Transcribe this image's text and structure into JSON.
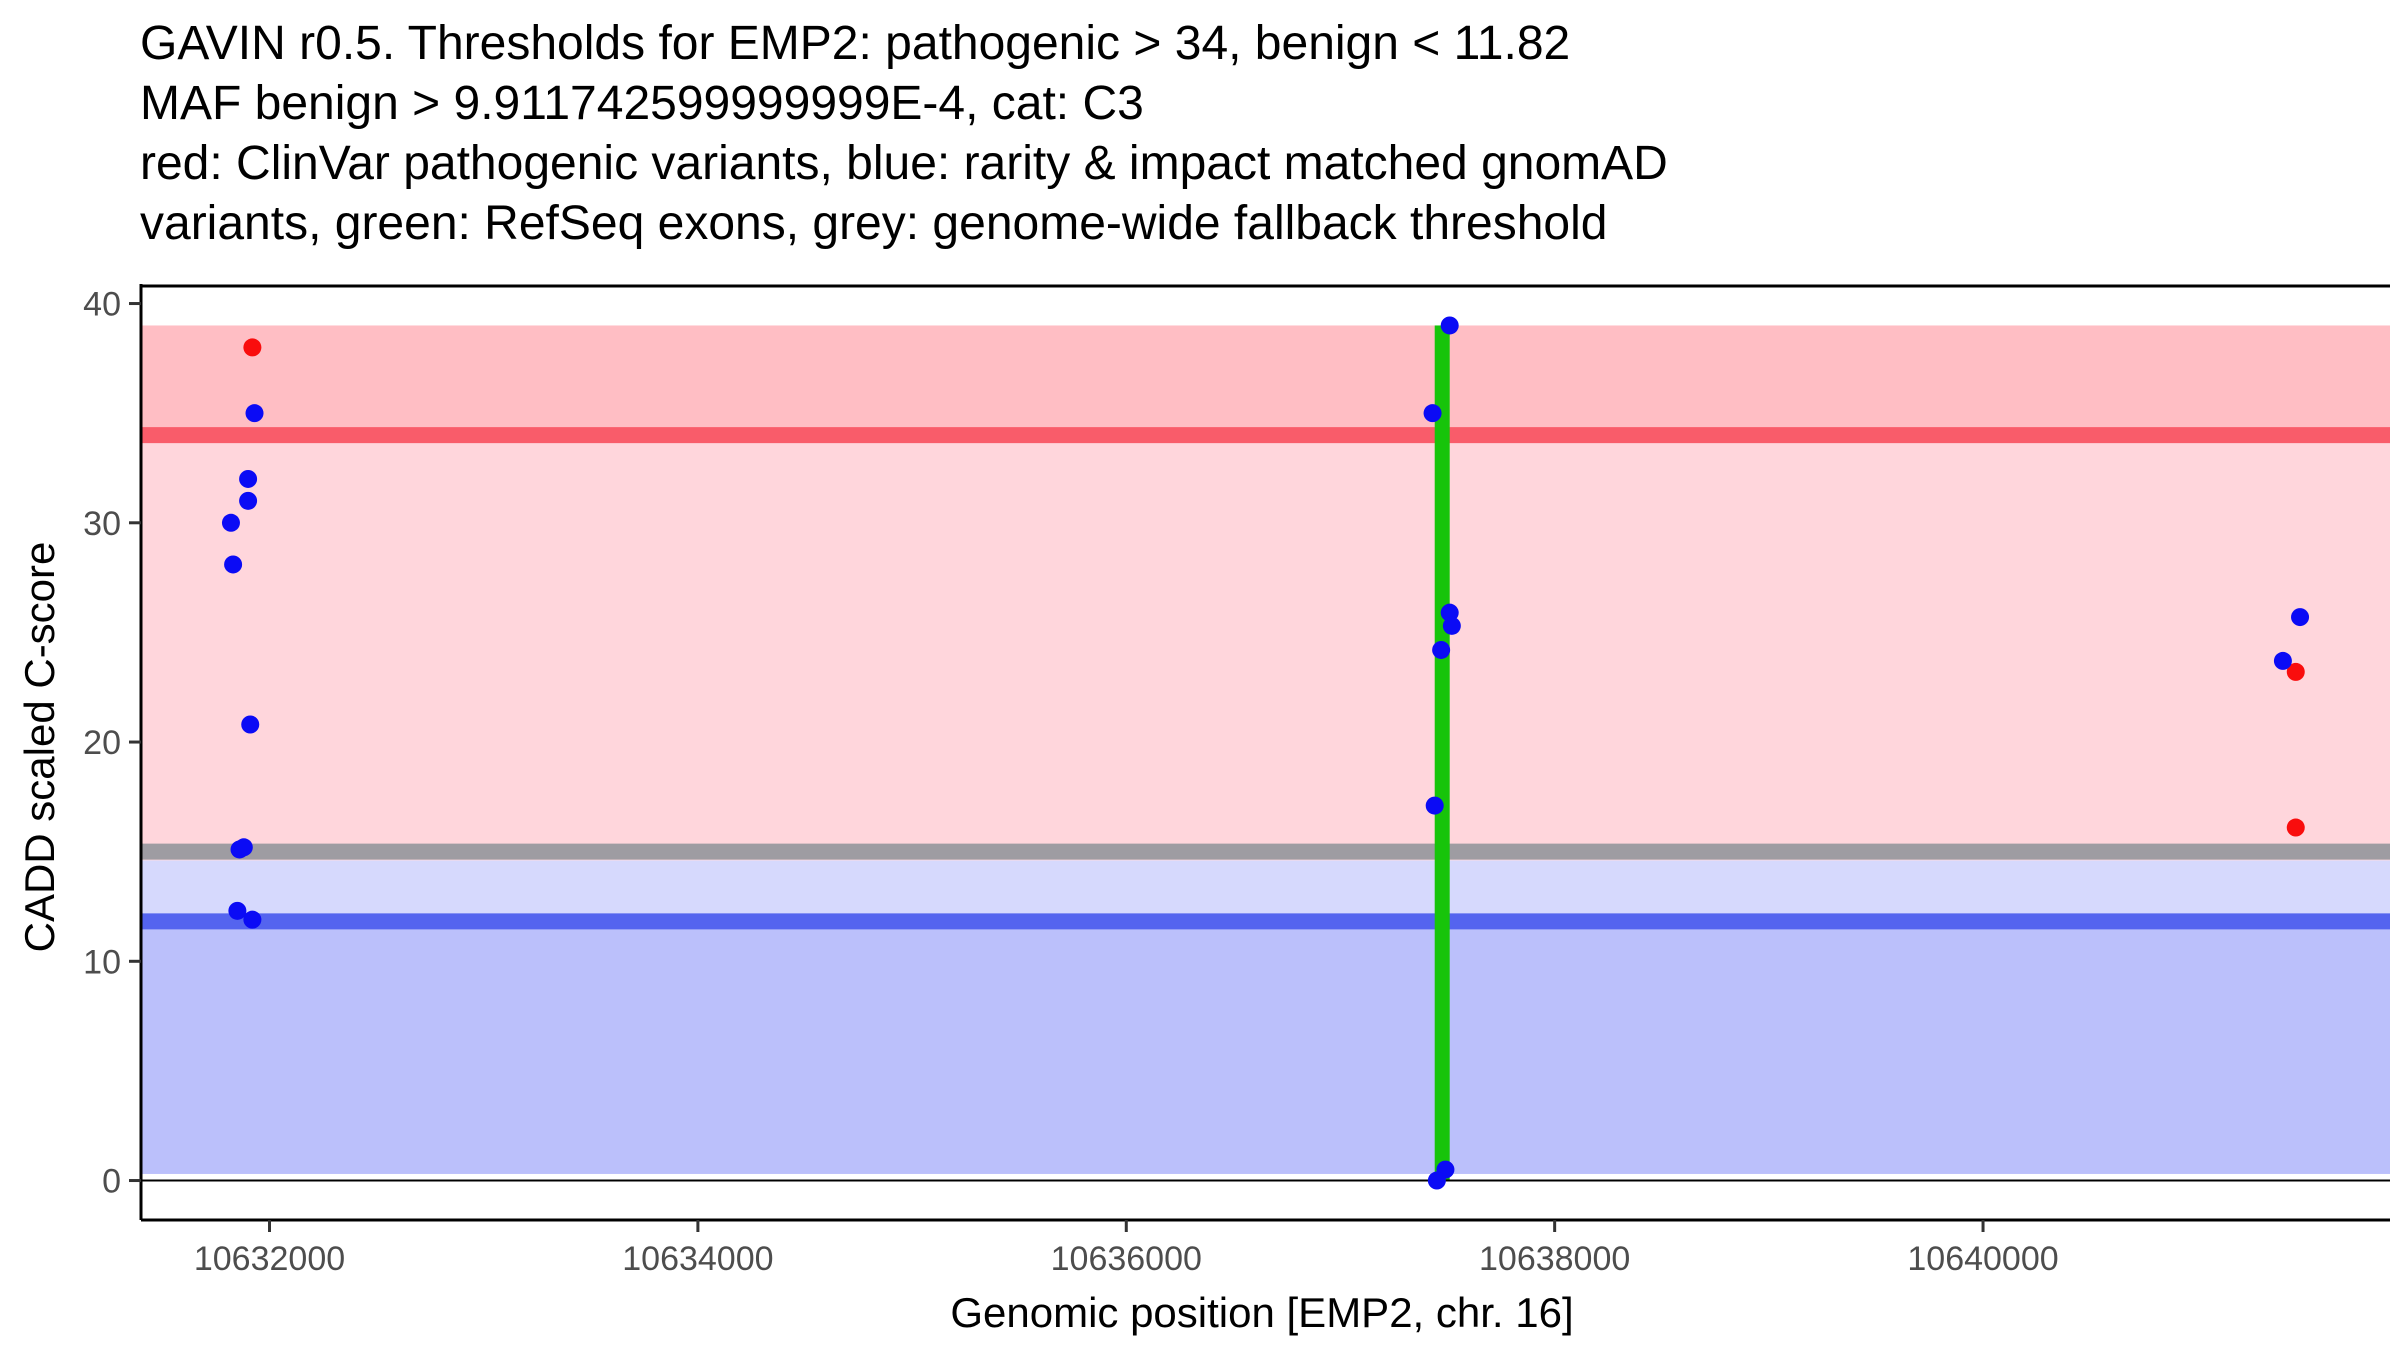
{
  "chart_data": {
    "type": "scatter",
    "title_lines": [
      "GAVIN r0.5. Thresholds for EMP2: pathogenic > 34, benign < 11.82",
      "MAF benign > 9.911742599999999E-4, cat: C3",
      "red: ClinVar pathogenic variants, blue: rarity & impact matched gnomAD",
      "variants, green: RefSeq exons, grey: genome-wide fallback threshold"
    ],
    "xlabel": "Genomic position [EMP2, chr. 16]",
    "ylabel": "CADD scaled C-score",
    "xlim": [
      10631400,
      10641900
    ],
    "ylim": [
      -1.8,
      40.8
    ],
    "x_ticks": [
      10632000,
      10634000,
      10636000,
      10638000,
      10640000
    ],
    "x_tick_labels": [
      "10632000",
      "10634000",
      "10636000",
      "10638000",
      "10640000"
    ],
    "y_ticks": [
      0,
      10,
      20,
      30,
      40
    ],
    "y_tick_labels": [
      "0",
      "10",
      "20",
      "30",
      "40"
    ],
    "zero_line": 0,
    "bands": [
      {
        "name": "strong-pathogenic-band",
        "y0": 34,
        "y1": 39,
        "color": "#ffbec4"
      },
      {
        "name": "pathogenic-band",
        "y0": 14.6,
        "y1": 34,
        "color": "#ffd6dc"
      },
      {
        "name": "light-benign-band",
        "y0": 11.82,
        "y1": 14.6,
        "color": "#d6d9fd"
      },
      {
        "name": "benign-band",
        "y0": 0.3,
        "y1": 11.82,
        "color": "#bbc0fb"
      }
    ],
    "threshold_lines": [
      {
        "name": "pathogenic-threshold-line",
        "y": 34,
        "color": "#f95c6a"
      },
      {
        "name": "fallback-threshold-line",
        "y": 15,
        "color": "#9e9ca2"
      },
      {
        "name": "benign-threshold-line",
        "y": 11.82,
        "color": "#5464ef"
      }
    ],
    "exons": [
      {
        "name": "refseq-exon",
        "x0": 10637440,
        "x1": 10637510,
        "y0": 0,
        "y1": 39,
        "color": "#17c40a"
      }
    ],
    "series": [
      {
        "name": "ClinVar pathogenic variants",
        "color": "#f90d0d",
        "points": [
          {
            "x": 10631920,
            "y": 38
          },
          {
            "x": 10641460,
            "y": 23.2
          },
          {
            "x": 10641460,
            "y": 16.1
          }
        ]
      },
      {
        "name": "rarity & impact matched gnomAD variants",
        "color": "#0b0bf5",
        "points": [
          {
            "x": 10631930,
            "y": 35
          },
          {
            "x": 10631900,
            "y": 32
          },
          {
            "x": 10631900,
            "y": 31
          },
          {
            "x": 10631820,
            "y": 30
          },
          {
            "x": 10631830,
            "y": 28.1
          },
          {
            "x": 10631910,
            "y": 20.8
          },
          {
            "x": 10631860,
            "y": 15.1
          },
          {
            "x": 10631880,
            "y": 15.2
          },
          {
            "x": 10631850,
            "y": 12.3
          },
          {
            "x": 10631920,
            "y": 11.9
          },
          {
            "x": 10637510,
            "y": 39
          },
          {
            "x": 10637430,
            "y": 35
          },
          {
            "x": 10637510,
            "y": 25.9
          },
          {
            "x": 10637520,
            "y": 25.3
          },
          {
            "x": 10637470,
            "y": 24.2
          },
          {
            "x": 10637440,
            "y": 17.1
          },
          {
            "x": 10637490,
            "y": 0.5
          },
          {
            "x": 10637450,
            "y": 0
          },
          {
            "x": 10641400,
            "y": 23.7
          },
          {
            "x": 10641480,
            "y": 25.7
          }
        ]
      }
    ]
  }
}
